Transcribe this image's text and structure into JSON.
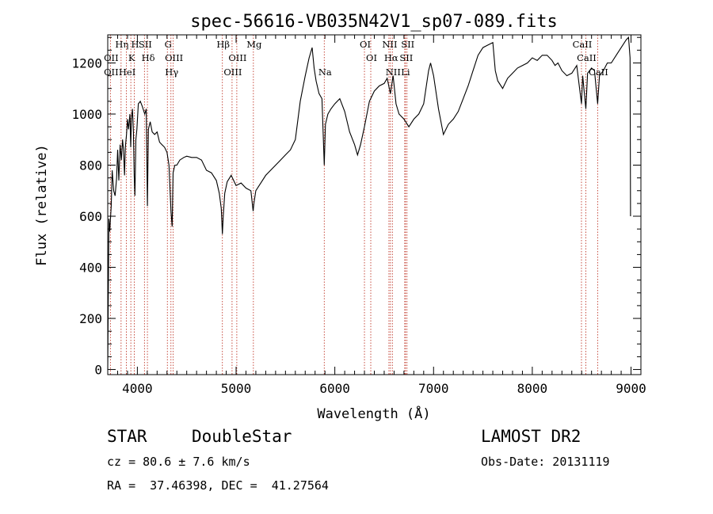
{
  "chart_data": {
    "type": "line",
    "title": "spec-56616-VB035N42V1_sp07-089.fits",
    "xlabel": "Wavelength (Å)",
    "ylabel": "Flux (relative)",
    "xlim": [
      3700,
      9100
    ],
    "ylim": [
      -20,
      1310
    ],
    "xticks": [
      4000,
      5000,
      6000,
      7000,
      8000,
      9000
    ],
    "yticks": [
      0,
      200,
      400,
      600,
      800,
      1000,
      1200
    ],
    "grid": false,
    "series": [
      {
        "points": [
          [
            3700,
            0
          ],
          [
            3705,
            250
          ],
          [
            3712,
            590
          ],
          [
            3720,
            540
          ],
          [
            3735,
            640
          ],
          [
            3745,
            780
          ],
          [
            3760,
            700
          ],
          [
            3775,
            680
          ],
          [
            3790,
            750
          ],
          [
            3800,
            860
          ],
          [
            3812,
            740
          ],
          [
            3825,
            880
          ],
          [
            3838,
            820
          ],
          [
            3850,
            900
          ],
          [
            3860,
            860
          ],
          [
            3870,
            760
          ],
          [
            3878,
            870
          ],
          [
            3890,
            920
          ],
          [
            3900,
            980
          ],
          [
            3910,
            940
          ],
          [
            3925,
            1000
          ],
          [
            3933,
            870
          ],
          [
            3940,
            980
          ],
          [
            3950,
            1020
          ],
          [
            3960,
            930
          ],
          [
            3968,
            760
          ],
          [
            3975,
            680
          ],
          [
            3985,
            900
          ],
          [
            3995,
            940
          ],
          [
            4010,
            1040
          ],
          [
            4030,
            1050
          ],
          [
            4050,
            1030
          ],
          [
            4075,
            1000
          ],
          [
            4090,
            1020
          ],
          [
            4102,
            640
          ],
          [
            4112,
            940
          ],
          [
            4130,
            970
          ],
          [
            4150,
            930
          ],
          [
            4175,
            920
          ],
          [
            4200,
            930
          ],
          [
            4225,
            890
          ],
          [
            4250,
            880
          ],
          [
            4275,
            870
          ],
          [
            4300,
            850
          ],
          [
            4320,
            800
          ],
          [
            4340,
            620
          ],
          [
            4352,
            560
          ],
          [
            4362,
            770
          ],
          [
            4380,
            800
          ],
          [
            4400,
            800
          ],
          [
            4430,
            820
          ],
          [
            4470,
            830
          ],
          [
            4500,
            835
          ],
          [
            4550,
            830
          ],
          [
            4600,
            830
          ],
          [
            4650,
            820
          ],
          [
            4700,
            780
          ],
          [
            4750,
            770
          ],
          [
            4800,
            740
          ],
          [
            4830,
            690
          ],
          [
            4850,
            630
          ],
          [
            4861,
            530
          ],
          [
            4870,
            600
          ],
          [
            4885,
            690
          ],
          [
            4910,
            735
          ],
          [
            4950,
            760
          ],
          [
            5000,
            720
          ],
          [
            5050,
            730
          ],
          [
            5100,
            710
          ],
          [
            5150,
            700
          ],
          [
            5172,
            620
          ],
          [
            5180,
            650
          ],
          [
            5200,
            700
          ],
          [
            5250,
            730
          ],
          [
            5300,
            760
          ],
          [
            5350,
            780
          ],
          [
            5400,
            800
          ],
          [
            5450,
            820
          ],
          [
            5500,
            840
          ],
          [
            5550,
            860
          ],
          [
            5600,
            900
          ],
          [
            5650,
            1050
          ],
          [
            5700,
            1150
          ],
          [
            5740,
            1220
          ],
          [
            5770,
            1260
          ],
          [
            5790,
            1180
          ],
          [
            5810,
            1130
          ],
          [
            5840,
            1080
          ],
          [
            5870,
            1060
          ],
          [
            5893,
            800
          ],
          [
            5905,
            960
          ],
          [
            5930,
            1000
          ],
          [
            5960,
            1020
          ],
          [
            6000,
            1040
          ],
          [
            6050,
            1060
          ],
          [
            6100,
            1010
          ],
          [
            6150,
            930
          ],
          [
            6200,
            880
          ],
          [
            6230,
            840
          ],
          [
            6260,
            880
          ],
          [
            6300,
            950
          ],
          [
            6350,
            1050
          ],
          [
            6400,
            1090
          ],
          [
            6450,
            1110
          ],
          [
            6500,
            1120
          ],
          [
            6530,
            1140
          ],
          [
            6563,
            1080
          ],
          [
            6590,
            1150
          ],
          [
            6620,
            1040
          ],
          [
            6650,
            1000
          ],
          [
            6700,
            980
          ],
          [
            6750,
            950
          ],
          [
            6800,
            980
          ],
          [
            6850,
            1000
          ],
          [
            6900,
            1040
          ],
          [
            6950,
            1170
          ],
          [
            6970,
            1200
          ],
          [
            7000,
            1150
          ],
          [
            7050,
            1020
          ],
          [
            7100,
            920
          ],
          [
            7150,
            960
          ],
          [
            7200,
            980
          ],
          [
            7250,
            1010
          ],
          [
            7300,
            1060
          ],
          [
            7350,
            1110
          ],
          [
            7400,
            1170
          ],
          [
            7450,
            1230
          ],
          [
            7500,
            1260
          ],
          [
            7550,
            1270
          ],
          [
            7600,
            1280
          ],
          [
            7625,
            1170
          ],
          [
            7650,
            1130
          ],
          [
            7700,
            1100
          ],
          [
            7750,
            1140
          ],
          [
            7800,
            1160
          ],
          [
            7850,
            1180
          ],
          [
            7900,
            1190
          ],
          [
            7950,
            1200
          ],
          [
            8000,
            1220
          ],
          [
            8050,
            1210
          ],
          [
            8100,
            1230
          ],
          [
            8150,
            1230
          ],
          [
            8200,
            1210
          ],
          [
            8230,
            1190
          ],
          [
            8260,
            1200
          ],
          [
            8300,
            1170
          ],
          [
            8350,
            1150
          ],
          [
            8400,
            1160
          ],
          [
            8450,
            1190
          ],
          [
            8498,
            1040
          ],
          [
            8510,
            1150
          ],
          [
            8542,
            1020
          ],
          [
            8560,
            1160
          ],
          [
            8600,
            1180
          ],
          [
            8630,
            1170
          ],
          [
            8662,
            1040
          ],
          [
            8680,
            1150
          ],
          [
            8720,
            1170
          ],
          [
            8760,
            1200
          ],
          [
            8800,
            1200
          ],
          [
            8850,
            1230
          ],
          [
            8900,
            1260
          ],
          [
            8950,
            1290
          ],
          [
            8975,
            1300
          ],
          [
            8990,
            1220
          ],
          [
            8995,
            600
          ]
        ]
      }
    ],
    "lines": [
      {
        "x": 3727,
        "labels": [
          "OII",
          "OII"
        ]
      },
      {
        "x": 3835,
        "labels": [
          "Hη"
        ]
      },
      {
        "x": 3889,
        "labels": [
          "HeI"
        ]
      },
      {
        "x": 3934,
        "labels": [
          "K"
        ]
      },
      {
        "x": 3969,
        "labels": [
          "H"
        ]
      },
      {
        "x": 4072,
        "labels": [
          "SII"
        ]
      },
      {
        "x": 4102,
        "labels": [
          "Hδ"
        ]
      },
      {
        "x": 4304,
        "labels": [
          "G"
        ]
      },
      {
        "x": 4340,
        "labels": [
          "Hγ"
        ]
      },
      {
        "x": 4363,
        "labels": [
          "OIII"
        ]
      },
      {
        "x": 4861,
        "labels": [
          "Hβ"
        ]
      },
      {
        "x": 4959,
        "labels": [
          "OIII"
        ]
      },
      {
        "x": 5007,
        "labels": [
          "OIII"
        ]
      },
      {
        "x": 5175,
        "labels": [
          "Mg"
        ]
      },
      {
        "x": 5893,
        "labels": [
          "Na"
        ]
      },
      {
        "x": 6300,
        "labels": [
          "OI"
        ]
      },
      {
        "x": 6364,
        "labels": [
          "OI"
        ]
      },
      {
        "x": 6548,
        "labels": [
          "NII"
        ]
      },
      {
        "x": 6563,
        "labels": [
          "Hα"
        ]
      },
      {
        "x": 6583,
        "labels": [
          "NII"
        ]
      },
      {
        "x": 6708,
        "labels": [
          "Li"
        ]
      },
      {
        "x": 6716,
        "labels": [
          "SII"
        ]
      },
      {
        "x": 6731,
        "labels": [
          "SII"
        ]
      },
      {
        "x": 8498,
        "labels": [
          "CaII"
        ]
      },
      {
        "x": 8542,
        "labels": [
          "CaII"
        ]
      },
      {
        "x": 8662,
        "labels": [
          "CaII"
        ]
      }
    ]
  },
  "info": {
    "class": "STAR",
    "subclass": "DoubleStar",
    "survey": "LAMOST DR2",
    "cz": "cz = 80.6 ± 7.6 km/s",
    "obs_date": "Obs-Date: 20131119",
    "coords": "RA =  37.46398, DEC =  41.27564"
  }
}
